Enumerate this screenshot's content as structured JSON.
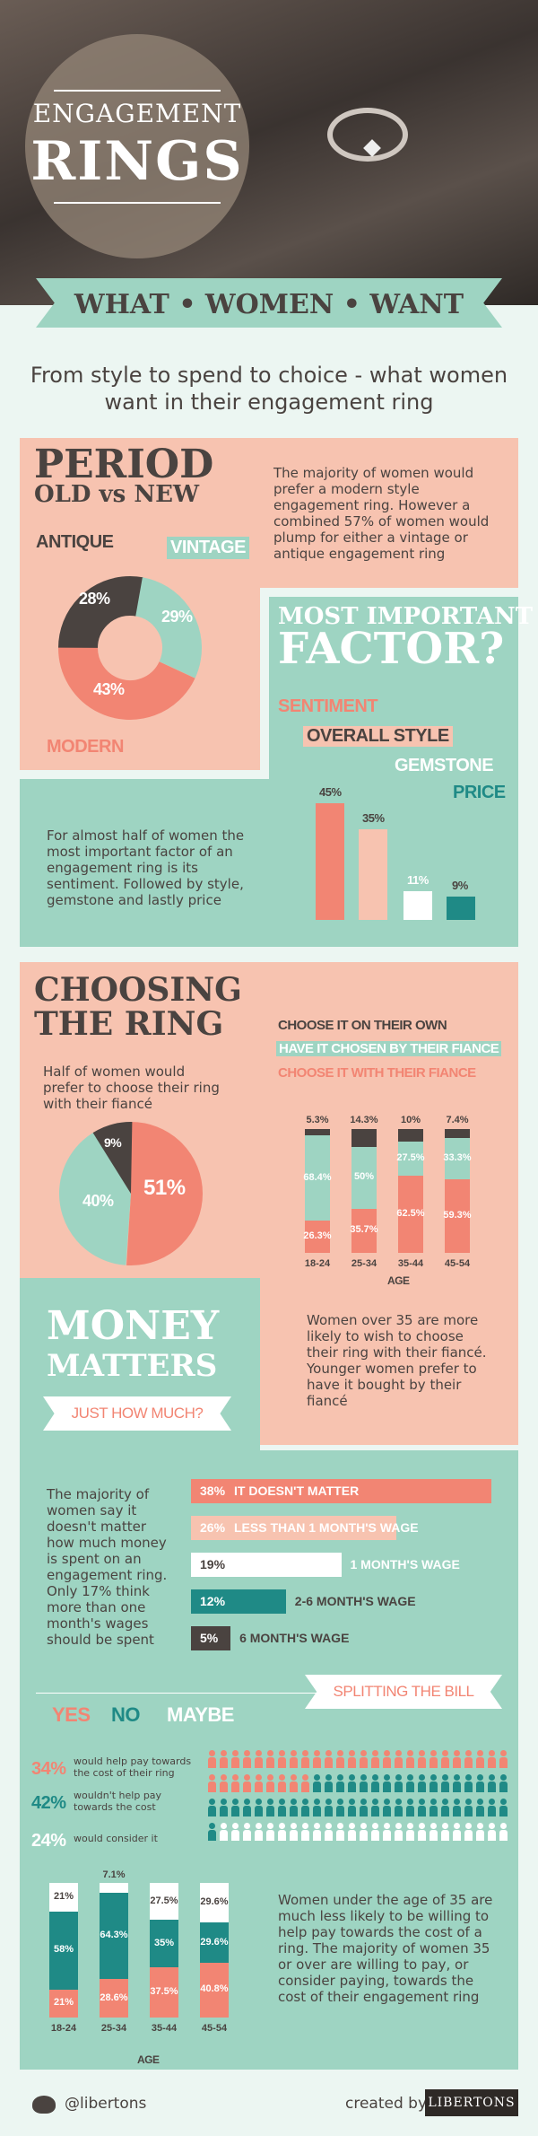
{
  "colors": {
    "salmon": "#f7c3b0",
    "mint": "#9ed4c2",
    "coral": "#f28573",
    "teal": "#1f8a86",
    "dark": "#4a4340",
    "cream": "#ecf6f2"
  },
  "header": {
    "line1": "ENGAGEMENT",
    "line2": "RINGS",
    "banner": "WHAT • WOMEN • WANT",
    "subtitle1": "From style to spend to choice - what women",
    "subtitle2": "want in their engagement ring"
  },
  "period": {
    "title": "PERIOD",
    "subtitle": "OLD vs NEW",
    "text": "The majority of women would prefer a modern style engagement ring. However a combined 57% of women would plump for either a vintage or antique engagement ring",
    "labels": {
      "antique": "ANTIQUE",
      "vintage": "VINTAGE",
      "modern": "MODERN"
    },
    "values": {
      "antique": "28%",
      "vintage": "29%",
      "modern": "43%"
    }
  },
  "factor": {
    "title1": "MOST IMPORTANT",
    "title2": "FACTOR?",
    "labels": [
      "SENTIMENT",
      "OVERALL STYLE",
      "GEMSTONE",
      "PRICE"
    ],
    "values": [
      "45%",
      "35%",
      "11%",
      "9%"
    ],
    "text": "For almost half of women the most important factor of an engagement ring is its sentiment. Followed by style, gemstone and lastly price"
  },
  "choosing": {
    "title1": "CHOOSING",
    "title2": "THE RING",
    "text": "Half of women would prefer to choose their ring with their fiancé",
    "pie": [
      "9%",
      "40%",
      "51%"
    ],
    "legend": [
      "CHOOSE IT ON THEIR OWN",
      "HAVE IT CHOSEN BY THEIR FIANCE",
      "CHOOSE IT WITH THEIR FIANCE"
    ],
    "ages": [
      "18-24",
      "25-34",
      "35-44",
      "45-54"
    ],
    "age_label": "AGE",
    "bars": [
      [
        "5.3%",
        "68.4%",
        "26.3%"
      ],
      [
        "14.3%",
        "50%",
        "35.7%"
      ],
      [
        "10%",
        "27.5%",
        "62.5%"
      ],
      [
        "7.4%",
        "33.3%",
        "59.3%"
      ]
    ],
    "text2": "Women over 35 are more likely to wish to choose their ring with their fiancé. Younger women prefer to have it bought by their fiancé"
  },
  "money": {
    "title1": "MONEY",
    "title2": "MATTERS",
    "badge": "JUST HOW MUCH?",
    "text": "The majority of women say it doesn't matter how much money is spent on an engagement ring. Only 17% think more than one month's wages should be spent",
    "rows": [
      {
        "pct": "38%",
        "label": "IT DOESN'T MATTER"
      },
      {
        "pct": "26%",
        "label": "LESS THAN 1 MONTH'S WAGE"
      },
      {
        "pct": "19%",
        "label": "1 MONTH'S WAGE"
      },
      {
        "pct": "12%",
        "label": "2-6 MONTH'S WAGE"
      },
      {
        "pct": "5%",
        "label": "6 MONTH'S WAGE"
      }
    ]
  },
  "split": {
    "badge": "SPLITTING THE BILL",
    "legend": [
      "YES",
      "NO",
      "MAYBE"
    ],
    "rows": [
      {
        "pct": "34%",
        "text": "would help pay towards the cost of their ring"
      },
      {
        "pct": "42%",
        "text": "wouldn't help pay towards the cost"
      },
      {
        "pct": "24%",
        "text": "would consider it"
      }
    ],
    "ages": [
      "18-24",
      "25-34",
      "35-44",
      "45-54"
    ],
    "age_label": "AGE",
    "bars": [
      [
        "21%",
        "58%",
        "21%"
      ],
      [
        "7.1%",
        "64.3%",
        "28.6%"
      ],
      [
        "27.5%",
        "35%",
        "37.5%"
      ],
      [
        "29.6%",
        "29.6%",
        "40.8%"
      ]
    ],
    "text": "Women under the age of 35 are much less likely to be willing to help pay towards the cost of a ring. The majority of women 35 or over are willing to pay, or consider paying, towards the cost of their engagement ring"
  },
  "footer": {
    "handle": "@libertons",
    "created": "created by",
    "brand": "LIBERTONS"
  }
}
